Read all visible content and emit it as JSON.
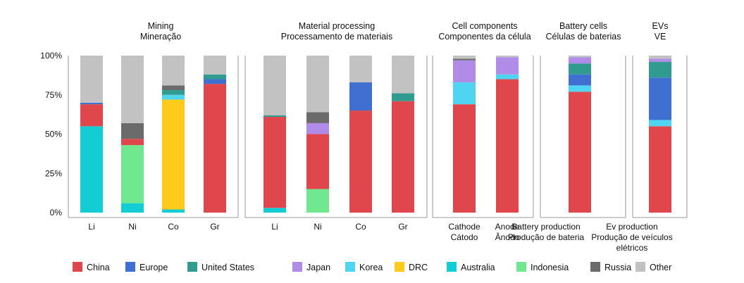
{
  "chart_data": {
    "type": "bar",
    "stacked": true,
    "ylim": [
      0,
      100
    ],
    "yticks": [
      "0%",
      "25%",
      "50%",
      "75%",
      "100%"
    ],
    "grid": false,
    "legend_position": "bottom",
    "colors": {
      "China": "#e0474c",
      "Europe": "#3f6fd1",
      "United States": "#2f9c8f",
      "Japan": "#b08ce8",
      "Korea": "#4fd5f2",
      "DRC": "#fccb1c",
      "Australia": "#12cdd4",
      "Indonesia": "#6fe890",
      "Russia": "#6b6b6b",
      "Other": "#c2c2c2"
    },
    "legend": [
      "China",
      "Europe",
      "United States",
      "Japan",
      "Korea",
      "DRC",
      "Australia",
      "Indonesia",
      "Russia",
      "Other"
    ],
    "stack_order": [
      "Australia",
      "Indonesia",
      "DRC",
      "China",
      "Korea",
      "Europe",
      "United States",
      "Japan",
      "Russia",
      "Other"
    ],
    "groups": [
      {
        "title": [
          "Mining",
          "Mineração"
        ],
        "bars": [
          {
            "label": [
              "Li"
            ],
            "values": {
              "Australia": 55,
              "China": 14,
              "Europe": 1,
              "Other": 30
            }
          },
          {
            "label": [
              "Ni"
            ],
            "values": {
              "Indonesia": 37,
              "Australia": 6,
              "China": 4,
              "Russia": 10,
              "Other": 43
            }
          },
          {
            "label": [
              "Co"
            ],
            "values": {
              "DRC": 70,
              "Australia": 2,
              "Korea": 3,
              "United States": 3,
              "Russia": 3,
              "Other": 19
            }
          },
          {
            "label": [
              "Gr"
            ],
            "values": {
              "China": 82,
              "United States": 3,
              "Europe": 3,
              "Other": 12
            }
          }
        ]
      },
      {
        "title": [
          "Material processing",
          "Processamento de materiais"
        ],
        "bars": [
          {
            "label": [
              "Li"
            ],
            "values": {
              "China": 58,
              "Australia": 3,
              "United States": 1,
              "Other": 38
            }
          },
          {
            "label": [
              "Ni"
            ],
            "values": {
              "China": 35,
              "Indonesia": 15,
              "Japan": 7,
              "Russia": 7,
              "Other": 36
            }
          },
          {
            "label": [
              "Co"
            ],
            "values": {
              "China": 65,
              "Europe": 18,
              "Other": 17
            }
          },
          {
            "label": [
              "Gr"
            ],
            "values": {
              "China": 71,
              "United States": 5,
              "Other": 24
            }
          }
        ]
      },
      {
        "title": [
          "Cell components",
          "Componentes da célula"
        ],
        "bars": [
          {
            "label": [
              "Cathode",
              "Cátodo"
            ],
            "values": {
              "China": 69,
              "Russia": 1,
              "Japan": 14,
              "Korea": 14,
              "Other": 2
            }
          },
          {
            "label": [
              "Anode",
              "Ânodo"
            ],
            "values": {
              "China": 85,
              "Japan": 11,
              "Korea": 3,
              "Other": 1
            }
          }
        ]
      },
      {
        "title": [
          "Battery cells",
          "Células de baterias"
        ],
        "bars": [
          {
            "label": [
              "Battery production",
              "Produção de bateria"
            ],
            "values": {
              "China": 77,
              "Europe": 7,
              "United States": 7,
              "Korea": 4,
              "Japan": 4,
              "Other": 1
            }
          }
        ]
      },
      {
        "title": [
          "EVs",
          "VE"
        ],
        "bars": [
          {
            "label": [
              "Ev production",
              "Produção de veículos",
              "elétricos"
            ],
            "values": {
              "China": 55,
              "Europe": 27,
              "United States": 10,
              "Korea": 4,
              "Japan": 2,
              "Other": 2
            }
          }
        ]
      }
    ]
  }
}
